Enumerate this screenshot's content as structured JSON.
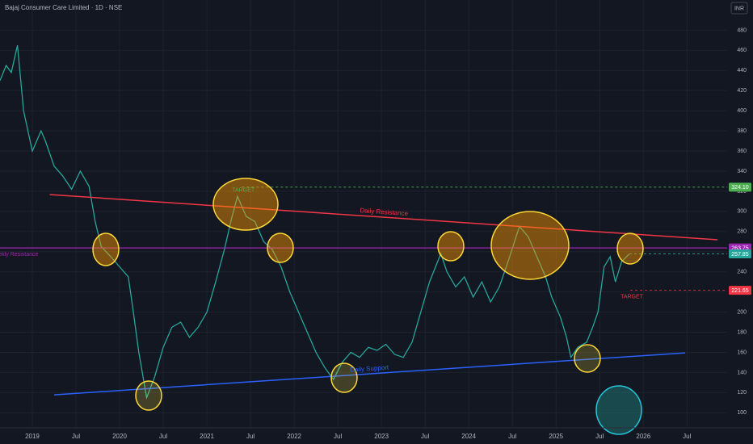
{
  "chart_data": {
    "type": "line",
    "title": "Bajaj Consumer Care Limited · 1D · NSE",
    "currency": "INR",
    "xlim": [
      2018.63,
      2026.96
    ],
    "ylim": [
      85,
      510
    ],
    "yticks": [
      100,
      120,
      140,
      160,
      180,
      200,
      220,
      240,
      260,
      280,
      300,
      320,
      340,
      360,
      380,
      400,
      420,
      440,
      460,
      480
    ],
    "xticks": [
      {
        "value": 2019,
        "label": "2019"
      },
      {
        "value": 2019.5,
        "label": "Jul"
      },
      {
        "value": 2020,
        "label": "2020"
      },
      {
        "value": 2020.5,
        "label": "Jul"
      },
      {
        "value": 2021,
        "label": "2021"
      },
      {
        "value": 2021.5,
        "label": "Jul"
      },
      {
        "value": 2022,
        "label": "2022"
      },
      {
        "value": 2022.5,
        "label": "Jul"
      },
      {
        "value": 2023,
        "label": "2023"
      },
      {
        "value": 2023.5,
        "label": "Jul"
      },
      {
        "value": 2024,
        "label": "2024"
      },
      {
        "value": 2024.5,
        "label": "Jul"
      },
      {
        "value": 2025,
        "label": "2025"
      },
      {
        "value": 2025.5,
        "label": "Jul"
      },
      {
        "value": 2026,
        "label": "2026"
      },
      {
        "value": 2026.5,
        "label": "Jul"
      }
    ],
    "grid": true,
    "series": [
      {
        "color": "#26a69a",
        "x": [
          2018.63,
          2018.7,
          2018.76,
          2018.83,
          2018.9,
          2019.0,
          2019.1,
          2019.15,
          2019.25,
          2019.35,
          2019.45,
          2019.55,
          2019.65,
          2019.72,
          2019.79,
          2019.9,
          2020.0,
          2020.1,
          2020.15,
          2020.22,
          2020.31,
          2020.4,
          2020.5,
          2020.6,
          2020.7,
          2020.8,
          2020.9,
          2021.0,
          2021.1,
          2021.2,
          2021.28,
          2021.35,
          2021.45,
          2021.55,
          2021.65,
          2021.75,
          2021.85,
          2021.95,
          2022.05,
          2022.15,
          2022.25,
          2022.35,
          2022.45,
          2022.55,
          2022.65,
          2022.75,
          2022.85,
          2022.95,
          2023.05,
          2023.15,
          2023.25,
          2023.35,
          2023.45,
          2023.55,
          2023.68,
          2023.75,
          2023.85,
          2023.95,
          2024.05,
          2024.15,
          2024.25,
          2024.35,
          2024.45,
          2024.58,
          2024.68,
          2024.78,
          2024.88,
          2024.95,
          2025.05,
          2025.12,
          2025.17,
          2025.25,
          2025.35,
          2025.42,
          2025.48,
          2025.55,
          2025.62,
          2025.68,
          2025.75,
          2025.84
        ],
        "values": [
          430,
          445,
          438,
          465,
          400,
          360,
          380,
          370,
          345,
          335,
          322,
          340,
          325,
          290,
          265,
          255,
          245,
          235,
          205,
          160,
          115,
          135,
          165,
          185,
          190,
          175,
          185,
          200,
          230,
          262,
          292,
          315,
          295,
          290,
          270,
          262,
          245,
          220,
          200,
          180,
          160,
          145,
          133,
          150,
          160,
          155,
          165,
          162,
          168,
          158,
          155,
          170,
          200,
          230,
          258,
          240,
          225,
          235,
          215,
          230,
          210,
          225,
          250,
          285,
          275,
          255,
          235,
          215,
          195,
          175,
          155,
          165,
          170,
          185,
          200,
          245,
          255,
          230,
          250,
          257.85
        ]
      }
    ],
    "lines": [
      {
        "name": "Daily Resistance",
        "color": "#f23645",
        "x": [
          2019.2,
          2026.85
        ],
        "values": [
          316.7,
          271.8
        ]
      },
      {
        "name": "Daily Support",
        "color": "#2962ff",
        "x": [
          2019.25,
          2026.48
        ],
        "values": [
          117.8,
          159.5
        ]
      }
    ],
    "levels": [
      {
        "name": "TARGET",
        "value": 324.1,
        "value_label": "324.10",
        "color": "#4caf50",
        "x_start": 2021.4
      },
      {
        "name": "Weekly Resistance",
        "value": 263.75,
        "value_label": "263.75",
        "color": "#9c27b0",
        "x_start": 2018.63
      },
      {
        "value": 257.85,
        "value_label": "257.85",
        "color": "#26a69a",
        "x_start": 2025.84
      },
      {
        "name": "TARGET",
        "value": 221.65,
        "value_label": "221.65",
        "color": "#f23645",
        "x_start": 2025.85
      }
    ]
  }
}
